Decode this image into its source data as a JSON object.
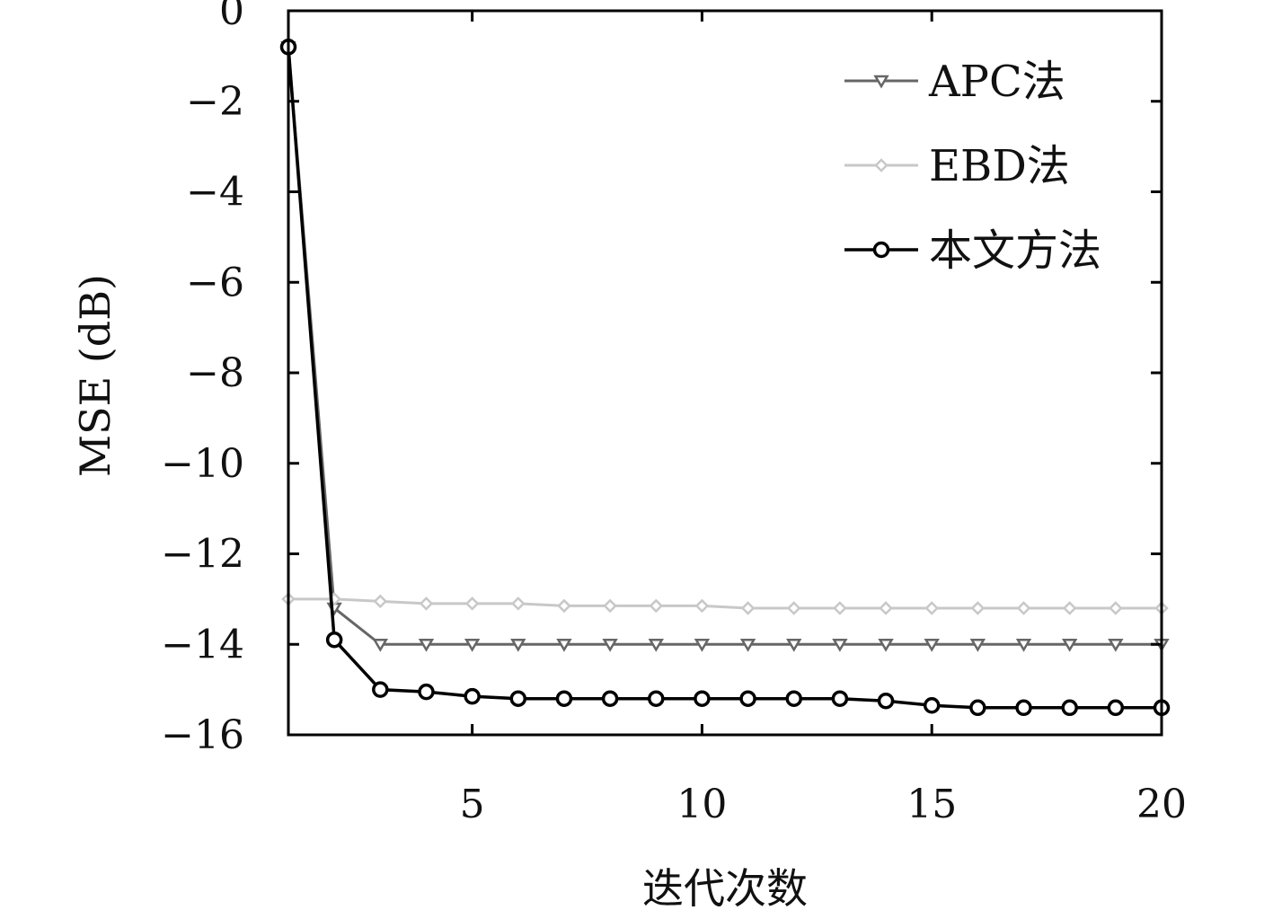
{
  "chart_data": {
    "type": "line",
    "title": "",
    "xlabel": "迭代次数",
    "ylabel": "MSE (dB)",
    "xlim": [
      1,
      20
    ],
    "ylim": [
      -16,
      0
    ],
    "xticks": [
      5,
      10,
      15,
      20
    ],
    "yticks": [
      0,
      -2,
      -4,
      -6,
      -8,
      -10,
      -12,
      -14,
      -16
    ],
    "grid": false,
    "legend_position": "top-right",
    "x": [
      1,
      2,
      3,
      4,
      5,
      6,
      7,
      8,
      9,
      10,
      11,
      12,
      13,
      14,
      15,
      16,
      17,
      18,
      19,
      20
    ],
    "series": [
      {
        "name": "APC法",
        "color": "#666666",
        "marker": "triangle-down",
        "values": [
          -0.8,
          -13.2,
          -14.0,
          -14.0,
          -14.0,
          -14.0,
          -14.0,
          -14.0,
          -14.0,
          -14.0,
          -14.0,
          -14.0,
          -14.0,
          -14.0,
          -14.0,
          -14.0,
          -14.0,
          -14.0,
          -14.0,
          -14.0
        ]
      },
      {
        "name": "EBD法",
        "color": "#c8c8c8",
        "marker": "diamond",
        "values": [
          -13.0,
          -13.0,
          -13.05,
          -13.1,
          -13.1,
          -13.1,
          -13.15,
          -13.15,
          -13.15,
          -13.15,
          -13.2,
          -13.2,
          -13.2,
          -13.2,
          -13.2,
          -13.2,
          -13.2,
          -13.2,
          -13.2,
          -13.2
        ]
      },
      {
        "name": "本文方法",
        "color": "#000000",
        "marker": "circle",
        "values": [
          -0.8,
          -13.9,
          -15.0,
          -15.05,
          -15.15,
          -15.2,
          -15.2,
          -15.2,
          -15.2,
          -15.2,
          -15.2,
          -15.2,
          -15.2,
          -15.25,
          -15.35,
          -15.4,
          -15.4,
          -15.4,
          -15.4,
          -15.4
        ]
      }
    ]
  }
}
